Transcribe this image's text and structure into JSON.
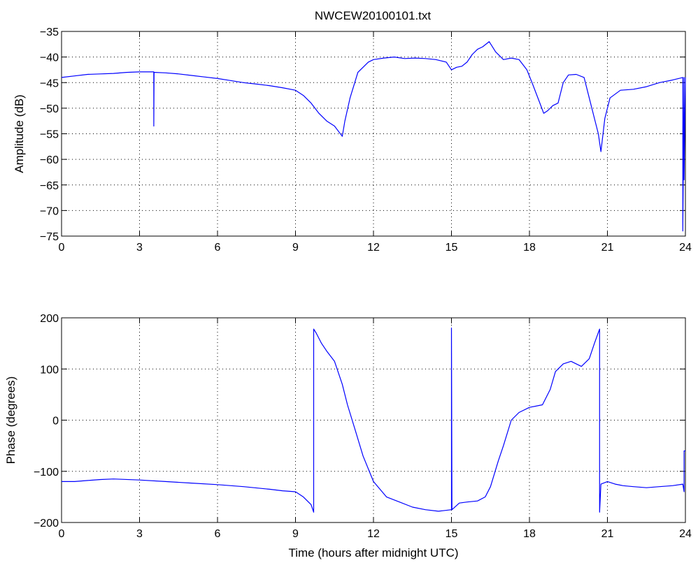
{
  "figure_title": "NWCEW20100101.txt",
  "chart_data": [
    {
      "type": "line",
      "title": "NWCEW20100101.txt",
      "xlabel": "",
      "ylabel": "Amplitude (dB)",
      "xlim": [
        0,
        24
      ],
      "ylim": [
        -75,
        -35
      ],
      "xticks": [
        0,
        3,
        6,
        9,
        12,
        15,
        18,
        21,
        24
      ],
      "yticks": [
        -75,
        -70,
        -65,
        -60,
        -55,
        -50,
        -45,
        -40,
        -35
      ],
      "grid": true,
      "color": "#0000ff",
      "x": [
        0,
        0.5,
        1,
        1.5,
        2,
        2.5,
        3,
        3.5,
        3.55,
        3.55,
        3.56,
        3.6,
        4,
        4.5,
        5,
        5.5,
        6,
        6.5,
        7,
        7.5,
        8,
        8.5,
        9,
        9.3,
        9.6,
        9.9,
        10.2,
        10.5,
        10.8,
        10.9,
        11.1,
        11.4,
        11.8,
        12,
        12.4,
        12.8,
        13.2,
        13.6,
        14,
        14.4,
        14.8,
        15,
        15.2,
        15.4,
        15.6,
        15.8,
        16,
        16.2,
        16.45,
        16.7,
        17,
        17.3,
        17.6,
        17.9,
        18.1,
        18.4,
        18.55,
        18.7,
        18.9,
        19.1,
        19.3,
        19.5,
        19.8,
        20.1,
        20.3,
        20.5,
        20.65,
        20.75,
        20.9,
        21.1,
        21.5,
        22,
        22.5,
        23,
        23.5,
        23.9,
        23.9,
        23.9,
        23.95,
        23.95,
        24
      ],
      "y": [
        -44,
        -43.7,
        -43.4,
        -43.3,
        -43.2,
        -43,
        -42.9,
        -42.9,
        -42.9,
        -53.5,
        -43,
        -43,
        -43.1,
        -43.3,
        -43.6,
        -43.9,
        -44.2,
        -44.6,
        -45,
        -45.3,
        -45.6,
        -46,
        -46.5,
        -47.5,
        -49,
        -51,
        -52.5,
        -53.5,
        -55.5,
        -52.5,
        -48,
        -43,
        -41,
        -40.5,
        -40.2,
        -40,
        -40.3,
        -40.2,
        -40.3,
        -40.5,
        -41,
        -42.5,
        -42,
        -41.8,
        -41,
        -39.5,
        -38.5,
        -38,
        -37,
        -39,
        -40.5,
        -40.2,
        -40.5,
        -42.5,
        -45,
        -49,
        -51,
        -50.5,
        -49.5,
        -49,
        -45,
        -43.5,
        -43.4,
        -44,
        -48,
        -52,
        -55,
        -58.5,
        -52,
        -48,
        -46.5,
        -46.3,
        -45.8,
        -45,
        -44.5,
        -44,
        -44,
        -74,
        -44,
        -64,
        -44
      ]
    },
    {
      "type": "line",
      "title": "",
      "xlabel": "Time (hours after midnight UTC)",
      "ylabel": "Phase (degrees)",
      "xlim": [
        0,
        24
      ],
      "ylim": [
        -200,
        200
      ],
      "xticks": [
        0,
        3,
        6,
        9,
        12,
        15,
        18,
        21,
        24
      ],
      "yticks": [
        -200,
        -100,
        0,
        100,
        200
      ],
      "grid": true,
      "color": "#0000ff",
      "x": [
        0,
        0.5,
        1,
        1.5,
        2,
        3,
        4,
        5,
        6,
        7,
        8,
        8.5,
        9,
        9.3,
        9.6,
        9.7,
        9.7,
        9.8,
        10,
        10.2,
        10.5,
        10.8,
        11,
        11.3,
        11.6,
        12,
        12.5,
        13,
        13.5,
        14,
        14.5,
        15,
        15,
        15.02,
        15.3,
        15.6,
        16,
        16.3,
        16.5,
        16.8,
        17,
        17.3,
        17.6,
        18,
        18.5,
        18.8,
        19,
        19.3,
        19.6,
        20,
        20.3,
        20.5,
        20.7,
        20.7,
        20.75,
        21,
        21.3,
        21.6,
        22,
        22.5,
        23,
        23.5,
        23.9,
        23.95,
        23.95,
        24
      ],
      "y": [
        -120,
        -120,
        -118,
        -116,
        -115,
        -117,
        -120,
        -123,
        -126,
        -130,
        -135,
        -138,
        -140,
        -150,
        -165,
        -180,
        178,
        170,
        150,
        135,
        115,
        70,
        30,
        -20,
        -70,
        -120,
        -150,
        -160,
        -170,
        -175,
        -178,
        -175,
        180,
        -175,
        -162,
        -160,
        -158,
        -150,
        -130,
        -80,
        -50,
        0,
        15,
        25,
        30,
        60,
        95,
        110,
        115,
        105,
        120,
        150,
        178,
        -180,
        -125,
        -120,
        -125,
        -128,
        -130,
        -132,
        -130,
        -128,
        -125,
        -140,
        -60,
        -60
      ]
    }
  ]
}
